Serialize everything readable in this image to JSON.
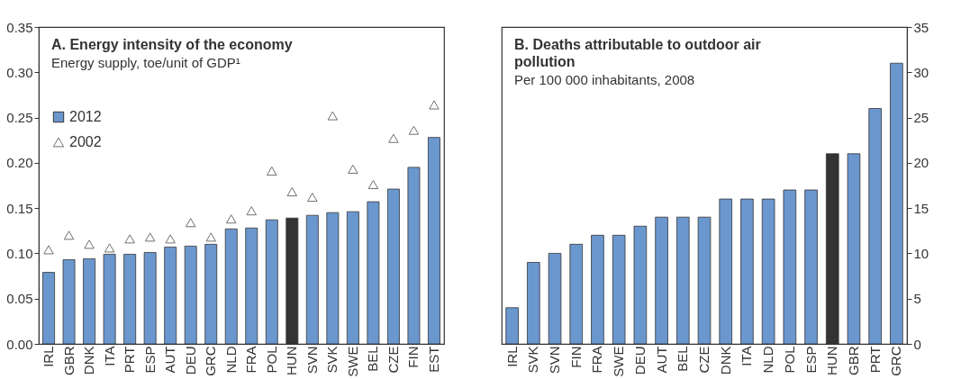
{
  "chart_data": [
    {
      "type": "bar",
      "title": "A. Energy intensity of the economy",
      "subtitle": "Energy supply, toe/unit of GDP¹",
      "categories": [
        "IRL",
        "GBR",
        "DNK",
        "ITA",
        "PRT",
        "ESP",
        "AUT",
        "DEU",
        "GRC",
        "NLD",
        "FRA",
        "POL",
        "HUN",
        "SVN",
        "SVK",
        "SWE",
        "BEL",
        "CZE",
        "FIN",
        "EST"
      ],
      "series": [
        {
          "name": "2012",
          "color": "#6b97cf",
          "colors": [
            "#6b97cf",
            "#6b97cf",
            "#6b97cf",
            "#6b97cf",
            "#6b97cf",
            "#6b97cf",
            "#6b97cf",
            "#6b97cf",
            "#6b97cf",
            "#6b97cf",
            "#6b97cf",
            "#6b97cf",
            "#333333",
            "#6b97cf",
            "#6b97cf",
            "#6b97cf",
            "#6b97cf",
            "#6b97cf",
            "#6b97cf",
            "#6b97cf"
          ],
          "values": [
            0.079,
            0.093,
            0.094,
            0.099,
            0.099,
            0.101,
            0.107,
            0.108,
            0.11,
            0.127,
            0.128,
            0.137,
            0.139,
            0.142,
            0.145,
            0.146,
            0.157,
            0.171,
            0.195,
            0.228
          ]
        },
        {
          "name": "2002",
          "type": "scatter",
          "marker": "triangle",
          "color": "#333333",
          "values": [
            0.104,
            0.12,
            0.11,
            0.106,
            0.116,
            0.118,
            0.116,
            0.134,
            0.118,
            0.138,
            0.147,
            0.191,
            0.168,
            0.162,
            0.252,
            0.193,
            0.176,
            0.227,
            0.236,
            0.264
          ]
        }
      ],
      "ylim": [
        0,
        0.35
      ],
      "yticks": [
        {
          "value": 0,
          "label": "0.00"
        },
        {
          "value": 0.05,
          "label": "0.05"
        },
        {
          "value": 0.1,
          "label": "0.10"
        },
        {
          "value": 0.15,
          "label": "0.15"
        },
        {
          "value": 0.2,
          "label": "0.20"
        },
        {
          "value": 0.25,
          "label": "0.25"
        },
        {
          "value": 0.3,
          "label": "0.30"
        },
        {
          "value": 0.35,
          "label": "0.35"
        }
      ],
      "legend": "top left"
    },
    {
      "type": "bar",
      "title": "B. Deaths attributable to outdoor air pollution",
      "subtitle": "Per 100 000 inhabitants, 2008",
      "categories": [
        "IRL",
        "SVK",
        "SVN",
        "FIN",
        "FRA",
        "SWE",
        "DEU",
        "AUT",
        "BEL",
        "CZE",
        "DNK",
        "ITA",
        "NLD",
        "POL",
        "ESP",
        "HUN",
        "GBR",
        "PRT",
        "GRC"
      ],
      "series": [
        {
          "color": "#6b97cf",
          "axis": "y2",
          "colors": [
            "#6b97cf",
            "#6b97cf",
            "#6b97cf",
            "#6b97cf",
            "#6b97cf",
            "#6b97cf",
            "#6b97cf",
            "#6b97cf",
            "#6b97cf",
            "#6b97cf",
            "#6b97cf",
            "#6b97cf",
            "#6b97cf",
            "#6b97cf",
            "#6b97cf",
            "#333333",
            "#6b97cf",
            "#6b97cf",
            "#6b97cf"
          ],
          "values": [
            4,
            9,
            10,
            11,
            12,
            12,
            13,
            14,
            14,
            14,
            16,
            16,
            16,
            17,
            17,
            21,
            21,
            26,
            31
          ]
        }
      ],
      "y2lim": [
        0,
        35
      ],
      "y2ticks": [
        0,
        5,
        10,
        15,
        20,
        25,
        30,
        35
      ]
    }
  ]
}
